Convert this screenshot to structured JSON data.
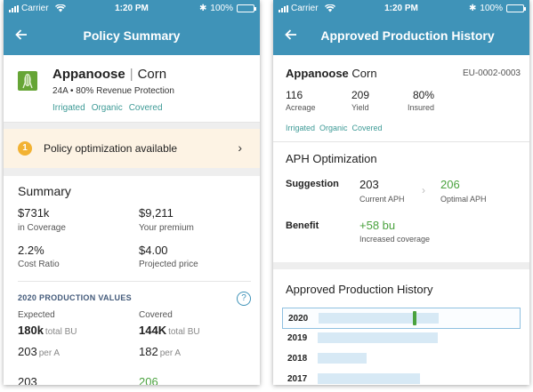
{
  "status_bar": {
    "carrier": "Carrier",
    "time": "1:20 PM",
    "battery": "100%",
    "icons": [
      "signal-icon",
      "wifi-icon",
      "bluetooth-icon",
      "battery-icon"
    ]
  },
  "colors": {
    "header": "#3f93b8",
    "crop_tile": "#66a536",
    "tag_text": "#3d9a96",
    "banner_bg": "#fdf3e4",
    "badge": "#f2b233",
    "positive": "#4aa23e",
    "bar": "#d7e9f5"
  },
  "left_screen": {
    "nav_title": "Policy Summary",
    "field": {
      "name": "Appanoose",
      "separator": "|",
      "crop": "Corn",
      "subtitle": "24A • 80% Revenue Protection",
      "tags": [
        "Irrigated",
        "Organic",
        "Covered"
      ]
    },
    "banner": {
      "badge": "1",
      "text": "Policy optimization available",
      "chevron": "›"
    },
    "summary": {
      "heading": "Summary",
      "stats": [
        {
          "value": "$731k",
          "label": "in Coverage"
        },
        {
          "value": "$9,211",
          "label": "Your premium"
        },
        {
          "value": "2.2%",
          "label": "Cost Ratio"
        },
        {
          "value": "$4.00",
          "label": "Projected price"
        }
      ]
    },
    "production": {
      "heading": "2020 PRODUCTION VALUES",
      "help": "?",
      "expected_label": "Expected",
      "covered_label": "Covered",
      "expected_total": "180k",
      "expected_total_unit": "total BU",
      "covered_total": "144K",
      "covered_total_unit": "total BU",
      "expected_per": "203",
      "expected_per_unit": "per A",
      "covered_per": "182",
      "covered_per_unit": "per A",
      "partial_left": "203",
      "partial_right": "206"
    }
  },
  "right_screen": {
    "nav_title": "Approved Production History",
    "field": {
      "name": "Appanoose",
      "crop": "Corn",
      "id": "EU-0002-0003",
      "stats": [
        {
          "value": "116",
          "label": "Acreage"
        },
        {
          "value": "209",
          "label": "Yield"
        },
        {
          "value": "80%",
          "label": "Insured"
        }
      ],
      "tags": [
        "Irrigated",
        "Organic",
        "Covered"
      ]
    },
    "optimization": {
      "heading": "APH Optimization",
      "suggestion_label": "Suggestion",
      "current_value": "203",
      "current_caption": "Current APH",
      "arrow": "›",
      "optimal_value": "206",
      "optimal_caption": "Optimal APH",
      "benefit_label": "Benefit",
      "benefit_value": "+58 bu",
      "benefit_caption": "Increased coverage"
    },
    "history": {
      "heading": "Approved Production History",
      "rows": [
        {
          "year": "2020",
          "bar_fraction": 0.74,
          "marker_fraction": 0.58,
          "selected": true
        },
        {
          "year": "2019",
          "bar_fraction": 0.74
        },
        {
          "year": "2018",
          "bar_fraction": 0.3
        },
        {
          "year": "2017",
          "bar_fraction": 0.63
        }
      ]
    }
  }
}
